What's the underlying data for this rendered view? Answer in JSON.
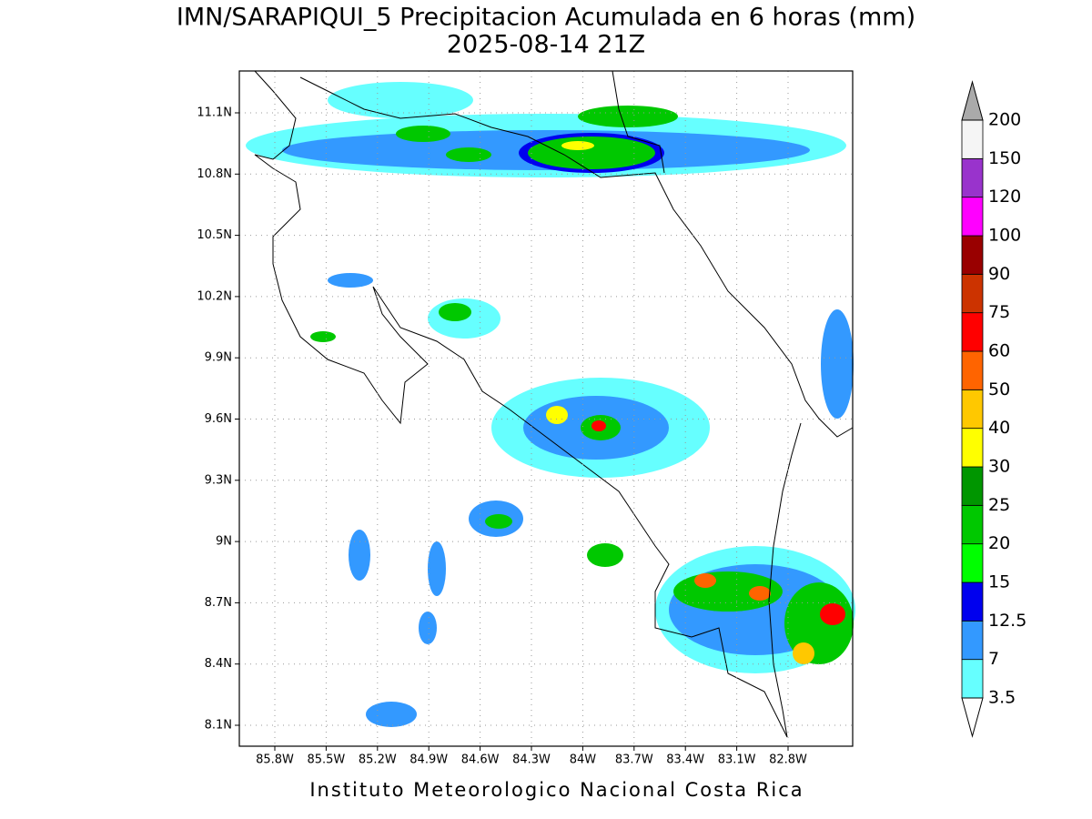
{
  "title": "IMN/SARAPIQUI_5 Precipitacion Acumulada en 6 horas (mm)",
  "subtitle": "2025-08-14 21Z",
  "map": {
    "lat_labels": [
      "11.1N",
      "10.8N",
      "10.5N",
      "10.2N",
      "9.9N",
      "9.6N",
      "9.3N",
      "9N",
      "8.7N",
      "8.4N",
      "8.1N"
    ],
    "lon_labels": [
      "85.8W",
      "85.5W",
      "85.2W",
      "84.9W",
      "84.6W",
      "84.3W",
      "84W",
      "83.7W",
      "83.4W",
      "83.1W",
      "82.8W"
    ]
  },
  "colorbar": {
    "levels": [
      3.5,
      7,
      12.5,
      15,
      20,
      25,
      30,
      40,
      50,
      60,
      75,
      90,
      100,
      120,
      150,
      200
    ],
    "colors": [
      "#66ffff",
      "#3399ff",
      "#0000ee",
      "#00ff00",
      "#00c800",
      "#009600",
      "#ffff00",
      "#ffc800",
      "#ff6400",
      "#ff0000",
      "#cc3300",
      "#990000",
      "#ff00ff",
      "#9933cc",
      "#f5f5f5"
    ],
    "over_color": "#aaaaaa",
    "under_color": "#ffffff"
  },
  "footer": "Instituto Meteorologico Nacional Costa Rica"
}
